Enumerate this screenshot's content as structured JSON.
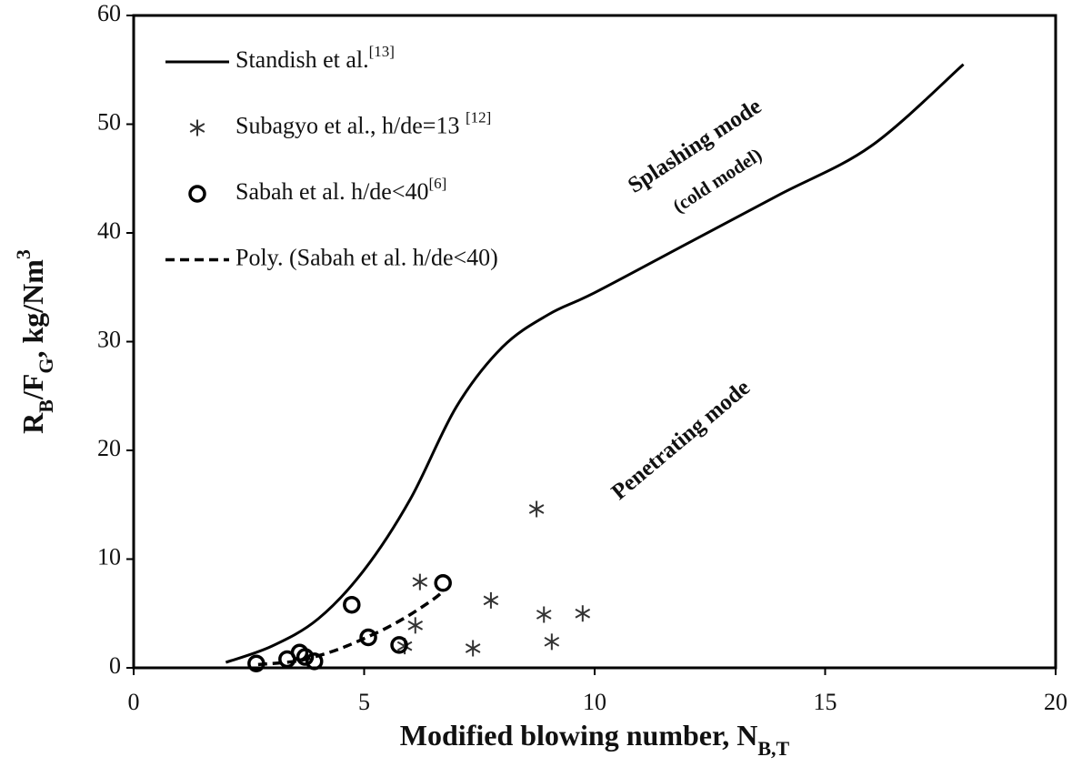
{
  "chart_data": {
    "type": "scatter",
    "x_label": [
      {
        "text": "Modified blowing number, N"
      },
      {
        "text": "B,T",
        "script": "sub"
      }
    ],
    "y_label": [
      {
        "text": "R"
      },
      {
        "text": "B",
        "script": "sub"
      },
      {
        "text": "/F"
      },
      {
        "text": "G",
        "script": "sub"
      },
      {
        "text": ", kg/Nm"
      },
      {
        "text": "3",
        "script": "super"
      }
    ],
    "xlim": [
      0,
      20
    ],
    "xticks": [
      0,
      5,
      10,
      15,
      20
    ],
    "ylim": [
      0,
      60
    ],
    "yticks": [
      0,
      10,
      20,
      30,
      40,
      50,
      60
    ],
    "grid": false,
    "legend": "upper left",
    "annotations": [
      "Splashing mode",
      "(cold model)",
      "Penetrating mode"
    ],
    "series": [
      {
        "name": "Standish et al.",
        "ref": "[13]",
        "mode": "line",
        "dash": false,
        "color": "#000000",
        "x": [
          2,
          3,
          4,
          5,
          6,
          7,
          8,
          9,
          10,
          12,
          14,
          16,
          18
        ],
        "values": [
          0.5,
          2,
          4.5,
          9,
          15.5,
          24,
          29.5,
          32.5,
          34.5,
          39,
          43.5,
          48,
          55.5
        ]
      },
      {
        "name": "Subagyo et al., h/de=13 ",
        "ref": "[12]",
        "mode": "markers",
        "marker": "star",
        "color": "#333333",
        "x": [
          6.21,
          6.11,
          5.88,
          7.75,
          7.36,
          8.74,
          8.9,
          9.07,
          9.74
        ],
        "values": [
          7.9,
          3.9,
          2.0,
          6.2,
          1.8,
          14.6,
          4.9,
          2.4,
          5.0
        ]
      },
      {
        "name": "Sabah et al. h/de<40",
        "ref": "[6]",
        "mode": "markers",
        "marker": "circle",
        "color": "#000000",
        "x": [
          2.66,
          3.33,
          3.6,
          3.72,
          3.92,
          4.73,
          5.09,
          5.76,
          6.71
        ],
        "values": [
          0.4,
          0.8,
          1.4,
          1.0,
          0.6,
          5.8,
          2.8,
          2.1,
          7.8
        ]
      },
      {
        "name": "Poly. (Sabah et al. h/de<40)",
        "mode": "line",
        "dash": true,
        "color": "#000000",
        "x": [
          2.7,
          3.5,
          4,
          4.5,
          5,
          5.5,
          6,
          6.5,
          6.7
        ],
        "values": [
          0.3,
          0.6,
          1.1,
          1.8,
          2.7,
          3.7,
          4.9,
          6.3,
          7.0
        ]
      }
    ]
  }
}
